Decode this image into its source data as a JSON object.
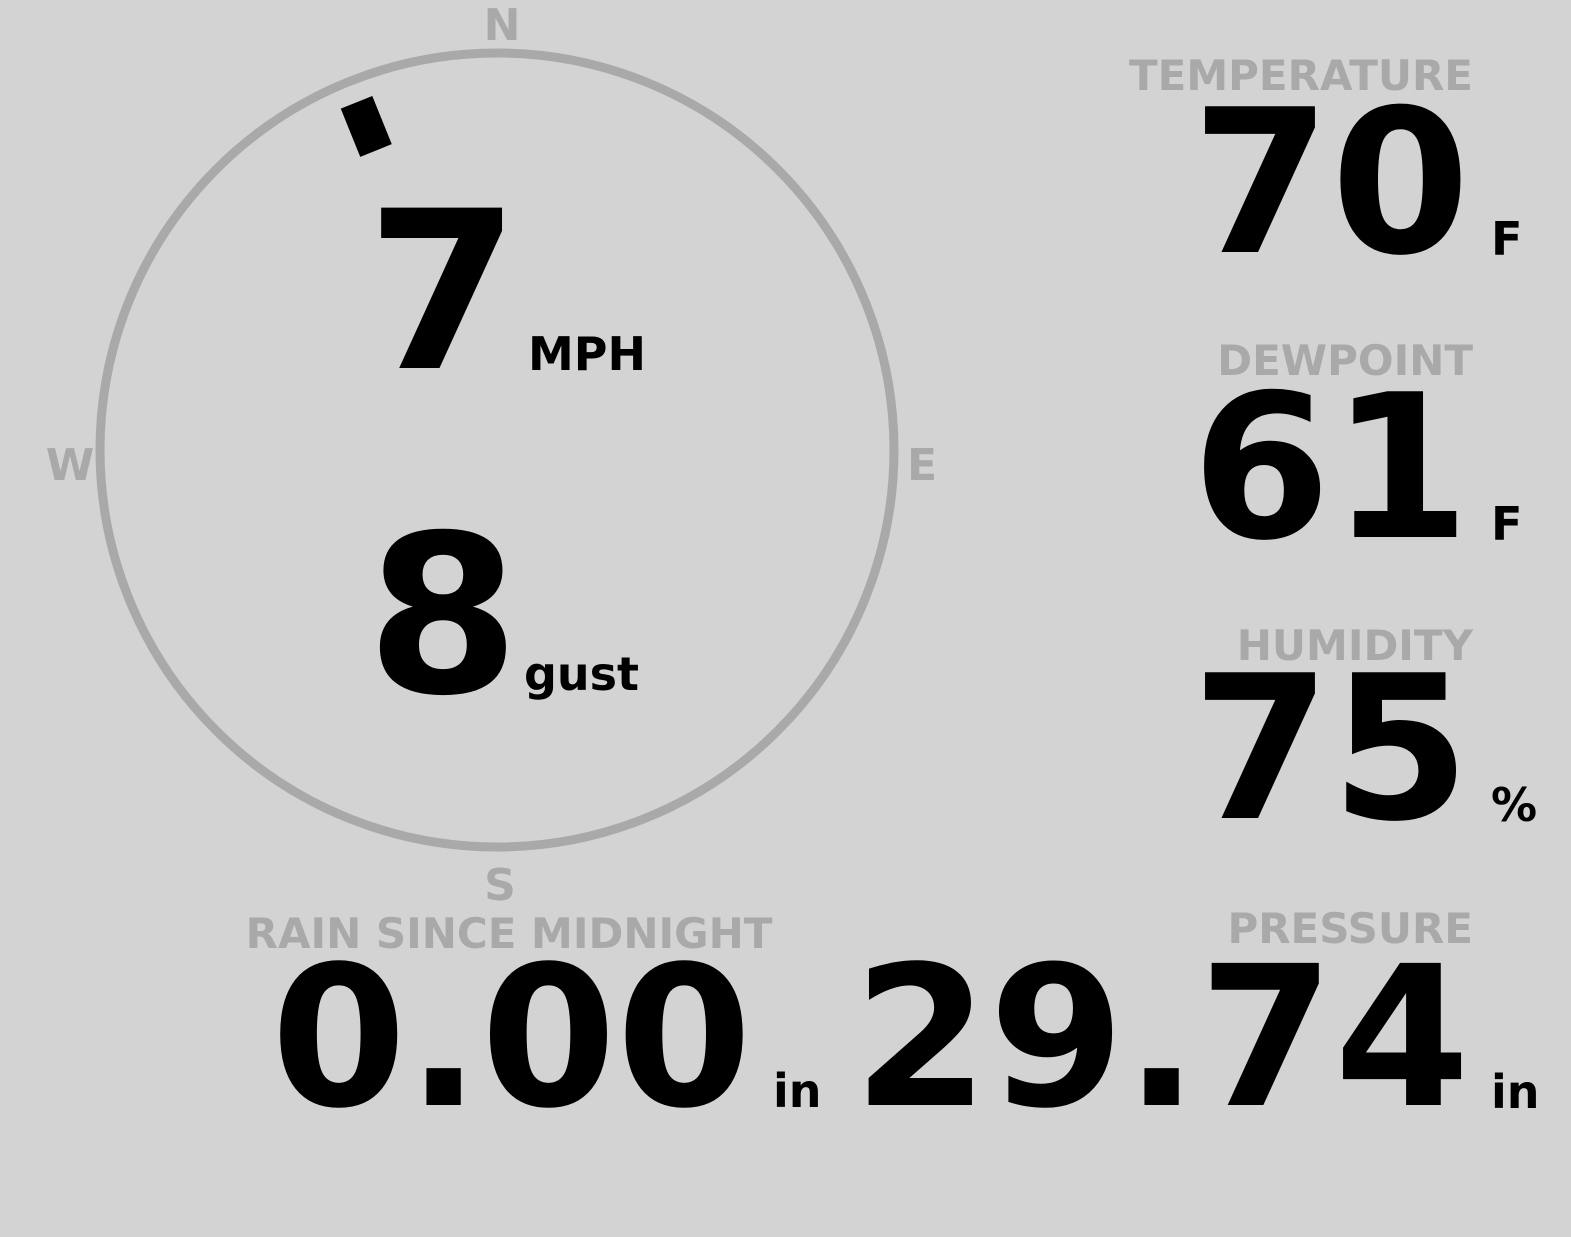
{
  "wind": {
    "compass": {
      "north": "N",
      "east": "E",
      "south": "S",
      "west": "W"
    },
    "direction_deg": 338,
    "speed": 7,
    "speed_unit": "MPH",
    "gust": 8,
    "gust_label": "gust"
  },
  "readings": [
    {
      "label": "TEMPERATURE",
      "value": 70,
      "unit": "F"
    },
    {
      "label": "DEWPOINT",
      "value": 61,
      "unit": "F"
    },
    {
      "label": "HUMIDITY",
      "value": 75,
      "unit": "%"
    },
    {
      "label": "PRESSURE",
      "value": 29.74,
      "unit": "in"
    }
  ],
  "rain": {
    "label": "RAIN SINCE MIDNIGHT",
    "value": "0.00",
    "unit": "in"
  }
}
